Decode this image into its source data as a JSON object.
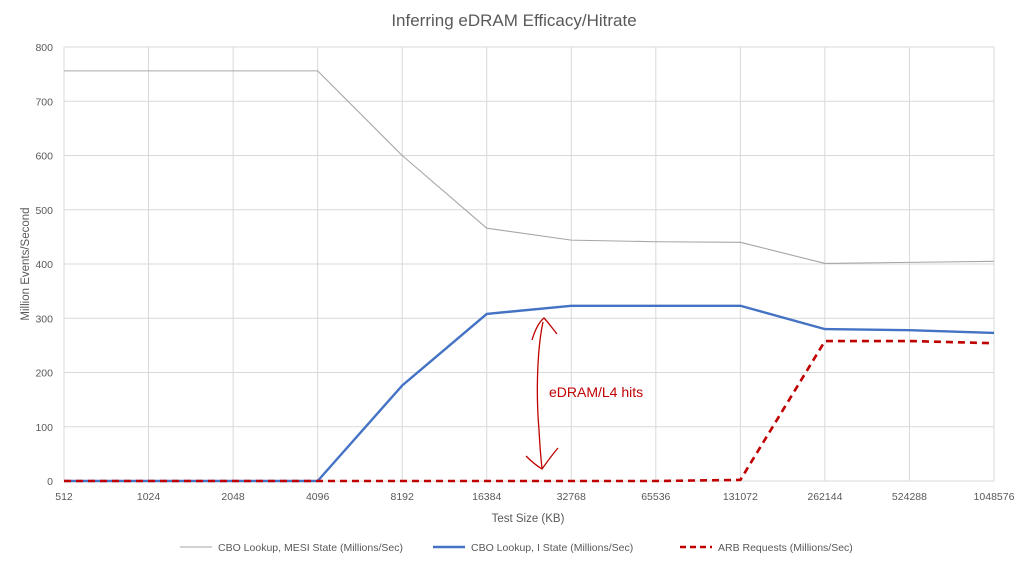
{
  "chart_data": {
    "type": "line",
    "title": "Inferring eDRAM Efficacy/Hitrate",
    "xlabel": "Test Size (KB)",
    "ylabel": "Million Events/Second",
    "ylim": [
      0,
      800
    ],
    "yticks": [
      0,
      100,
      200,
      300,
      400,
      500,
      600,
      700,
      800
    ],
    "categories": [
      "512",
      "1024",
      "2048",
      "4096",
      "8192",
      "16384",
      "32768",
      "65536",
      "131072",
      "262144",
      "524288",
      "1048576"
    ],
    "grid": true,
    "legend_position": "bottom",
    "series": [
      {
        "name": "CBO Lookup, MESI State (Millions/Sec)",
        "color": "#a6a6a6",
        "style": "solid-thin",
        "values": [
          756,
          756,
          756,
          756,
          600,
          466,
          444,
          441,
          440,
          401,
          403,
          405
        ]
      },
      {
        "name": "CBO Lookup, I State (Millions/Sec)",
        "color": "#4472c4",
        "style": "solid-thick",
        "values": [
          0,
          0,
          0,
          0,
          176,
          308,
          323,
          323,
          323,
          280,
          278,
          273
        ]
      },
      {
        "name": "ARB Requests (Millions/Sec)",
        "color": "#c00000",
        "style": "dashed",
        "values": [
          0,
          0,
          0,
          0,
          0,
          0,
          0,
          0,
          2,
          258,
          258,
          254
        ]
      }
    ],
    "annotations": [
      {
        "text": "eDRAM/L4 hits",
        "color": "#c00000"
      }
    ]
  }
}
